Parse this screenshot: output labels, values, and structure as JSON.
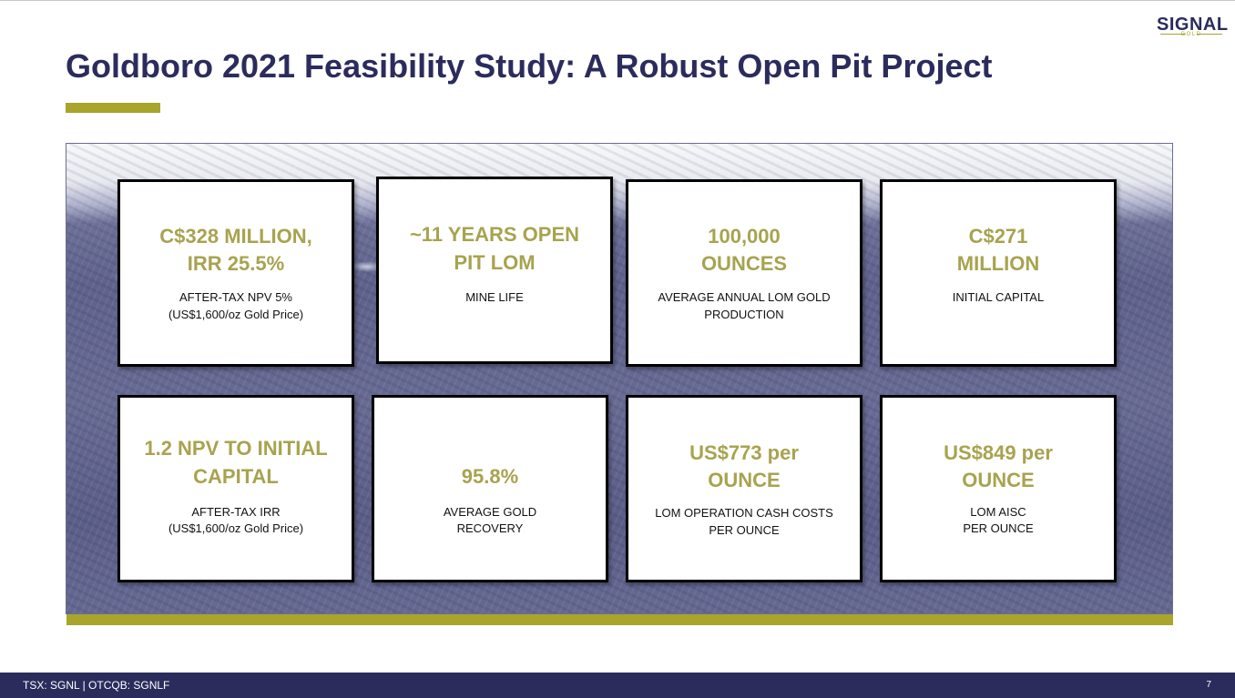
{
  "logo": {
    "name": "SIGNAL",
    "sub": "GOLD"
  },
  "title": "Goldboro 2021 Feasibility Study: A Robust Open Pit Project",
  "cards": [
    {
      "big": [
        "C$328 MILLION,",
        "IRR 25.5%"
      ],
      "small": [
        "AFTER-TAX NPV 5%",
        "(US$1,600/oz Gold Price)"
      ]
    },
    {
      "big": [
        "~11 YEARS OPEN",
        "PIT LOM"
      ],
      "small": [
        "MINE LIFE"
      ]
    },
    {
      "big": [
        "100,000",
        "OUNCES"
      ],
      "small": [
        "AVERAGE ANNUAL LOM GOLD",
        "PRODUCTION"
      ]
    },
    {
      "big": [
        "C$271",
        "MILLION"
      ],
      "small": [
        "INITIAL CAPITAL"
      ]
    },
    {
      "big": [
        "1.2 NPV TO INITIAL",
        "CAPITAL"
      ],
      "small": [
        "AFTER-TAX IRR",
        "(US$1,600/oz Gold Price)"
      ]
    },
    {
      "big": [
        "95.8%"
      ],
      "small": [
        "AVERAGE GOLD",
        "RECOVERY"
      ]
    },
    {
      "big": [
        "US$773 per",
        "OUNCE"
      ],
      "small": [
        "LOM OPERATION CASH COSTS",
        "PER OUNCE"
      ]
    },
    {
      "big": [
        "US$849 per",
        "OUNCE"
      ],
      "small": [
        "LOM AISC",
        "PER OUNCE"
      ]
    }
  ],
  "footer": {
    "ticker": "TSX: SGNL | OTCQB: SGNLF",
    "page": "7"
  },
  "colors": {
    "navy": "#2b2c5c",
    "olive": "#a8a42c",
    "value_text": "#a8a34f"
  }
}
